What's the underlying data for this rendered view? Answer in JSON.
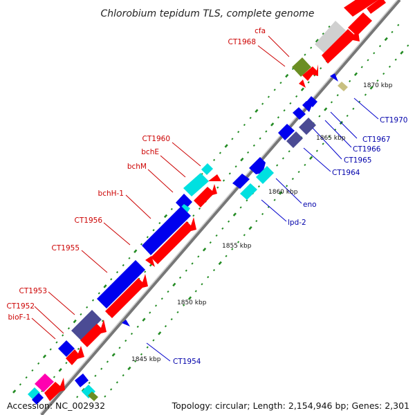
{
  "title": "Chlorobium tepidum TLS, complete genome",
  "footer": {
    "accession": "Accession: NC_002932",
    "summary": "Topology: circular; Length: 2,154,946 bp; Genes: 2,301"
  },
  "colors": {
    "forward_strand": "#ff0000",
    "reverse_strand": "#0000ee",
    "reverse_dark": "#4b4b94",
    "cyan": "#00e0e0",
    "olive": "#6b8e23",
    "khaki": "#c8c080",
    "gray": "#cccccc",
    "magenta": "#ff00b0",
    "tick": "#228b22",
    "backbone": "#888888",
    "label_red": "#cc0000",
    "label_blue": "#0000aa"
  },
  "ticks": [
    {
      "label": "1845 kbp"
    },
    {
      "label": "1850 kbp"
    },
    {
      "label": "1855 kbp"
    },
    {
      "label": "1860 kbp"
    },
    {
      "label": "1865 kbp"
    },
    {
      "label": "1870 kbp"
    }
  ],
  "gene_labels": {
    "cfa": "cfa",
    "ct1968": "CT1968",
    "ct1970": "CT1970",
    "ct1967": "CT1967",
    "ct1966": "CT1966",
    "ct1965": "CT1965",
    "ct1964": "CT1964",
    "eno": "eno",
    "lpd2": "lpd-2",
    "ct1960": "CT1960",
    "bche": "bchE",
    "bchm": "bchM",
    "bchh1": "bchH-1",
    "ct1956": "CT1956",
    "ct1955": "CT1955",
    "ct1953": "CT1953",
    "ct1952": "CT1952",
    "biof1": "bioF-1",
    "ct1954": "CT1954"
  }
}
